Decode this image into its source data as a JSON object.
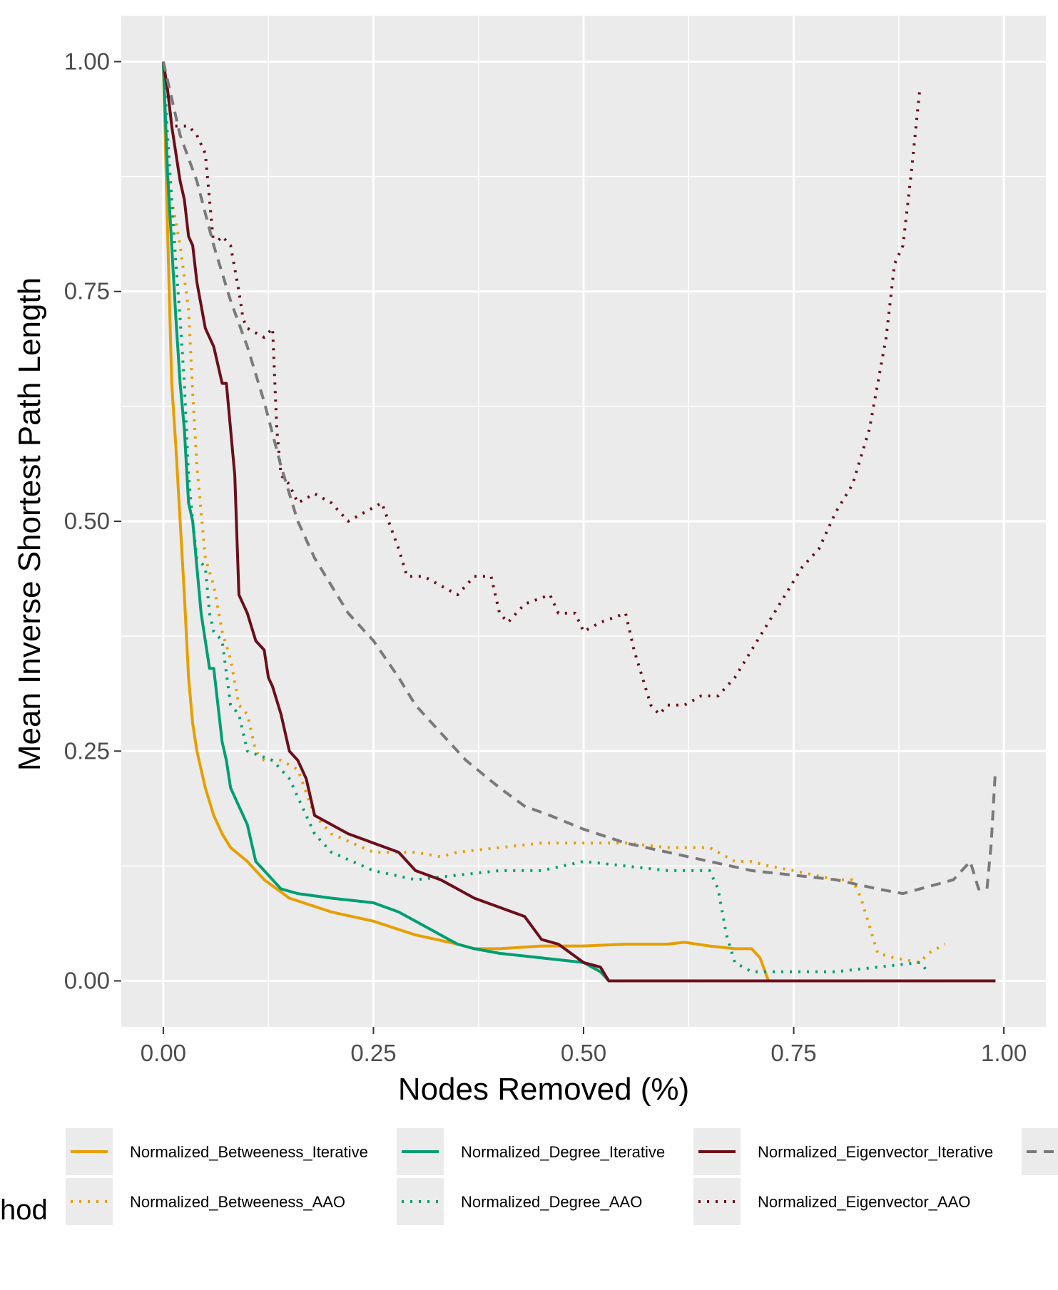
{
  "chart_data": {
    "type": "line",
    "title": "",
    "xlabel": "Nodes Removed (%)",
    "ylabel": "Mean Inverse Shortest Path Length",
    "xlim": [
      -0.05,
      1.05
    ],
    "ylim": [
      -0.05,
      1.05
    ],
    "xticks": [
      0,
      0.25,
      0.5,
      0.75,
      1.0
    ],
    "xtick_labels": [
      "0.00",
      "0.25",
      "0.50",
      "0.75",
      "1.00"
    ],
    "yticks": [
      0,
      0.25,
      0.5,
      0.75,
      1.0
    ],
    "ytick_labels": [
      "0.00",
      "0.25",
      "0.50",
      "0.75",
      "1.00"
    ],
    "grid": true,
    "legend": {
      "position": "bottom",
      "title": "hod"
    },
    "series": [
      {
        "name": "Normalized_Betweeness_Iterative",
        "color": "#E69F00",
        "dash": "solid",
        "x": [
          0,
          0.005,
          0.01,
          0.015,
          0.02,
          0.025,
          0.03,
          0.035,
          0.04,
          0.05,
          0.06,
          0.07,
          0.08,
          0.1,
          0.12,
          0.15,
          0.2,
          0.25,
          0.3,
          0.35,
          0.37,
          0.4,
          0.45,
          0.5,
          0.55,
          0.6,
          0.62,
          0.65,
          0.68,
          0.7,
          0.71,
          0.72,
          0.75,
          0.85,
          0.99
        ],
        "y": [
          1.0,
          0.82,
          0.65,
          0.58,
          0.5,
          0.42,
          0.33,
          0.28,
          0.25,
          0.21,
          0.18,
          0.16,
          0.145,
          0.13,
          0.11,
          0.09,
          0.075,
          0.065,
          0.05,
          0.04,
          0.035,
          0.035,
          0.038,
          0.038,
          0.04,
          0.04,
          0.042,
          0.038,
          0.035,
          0.035,
          0.025,
          0.0,
          0.0,
          0.0,
          0.0
        ]
      },
      {
        "name": "Normalized_Betweeness_AAO",
        "color": "#E69F00",
        "dash": "dotted",
        "x": [
          0,
          0.005,
          0.01,
          0.02,
          0.03,
          0.035,
          0.04,
          0.05,
          0.06,
          0.07,
          0.08,
          0.09,
          0.1,
          0.11,
          0.12,
          0.14,
          0.16,
          0.18,
          0.2,
          0.25,
          0.3,
          0.33,
          0.35,
          0.4,
          0.45,
          0.5,
          0.55,
          0.6,
          0.65,
          0.68,
          0.7,
          0.72,
          0.75,
          0.8,
          0.82,
          0.83,
          0.85,
          0.87,
          0.9,
          0.91,
          0.93
        ],
        "y": [
          1.0,
          0.9,
          0.85,
          0.8,
          0.73,
          0.64,
          0.56,
          0.46,
          0.43,
          0.38,
          0.35,
          0.3,
          0.29,
          0.25,
          0.24,
          0.24,
          0.23,
          0.18,
          0.16,
          0.14,
          0.14,
          0.135,
          0.14,
          0.145,
          0.15,
          0.15,
          0.15,
          0.145,
          0.145,
          0.13,
          0.13,
          0.125,
          0.12,
          0.11,
          0.11,
          0.09,
          0.03,
          0.025,
          0.02,
          0.03,
          0.04
        ]
      },
      {
        "name": "Normalized_Degree_Iterative",
        "color": "#009E73",
        "dash": "solid",
        "x": [
          0,
          0.005,
          0.01,
          0.015,
          0.02,
          0.025,
          0.03,
          0.035,
          0.04,
          0.045,
          0.05,
          0.055,
          0.06,
          0.065,
          0.07,
          0.075,
          0.08,
          0.09,
          0.1,
          0.11,
          0.12,
          0.14,
          0.16,
          0.2,
          0.25,
          0.28,
          0.3,
          0.33,
          0.35,
          0.37,
          0.4,
          0.45,
          0.5,
          0.52,
          0.53,
          0.55,
          0.7,
          0.99
        ],
        "y": [
          1.0,
          0.88,
          0.8,
          0.72,
          0.65,
          0.6,
          0.52,
          0.5,
          0.45,
          0.4,
          0.37,
          0.34,
          0.34,
          0.3,
          0.26,
          0.24,
          0.21,
          0.19,
          0.17,
          0.13,
          0.12,
          0.1,
          0.095,
          0.09,
          0.085,
          0.075,
          0.065,
          0.05,
          0.04,
          0.035,
          0.03,
          0.025,
          0.02,
          0.01,
          0.0,
          0.0,
          0.0,
          0.0
        ]
      },
      {
        "name": "Normalized_Degree_AAO",
        "color": "#009E73",
        "dash": "dotted",
        "x": [
          0,
          0.005,
          0.01,
          0.015,
          0.02,
          0.025,
          0.03,
          0.035,
          0.04,
          0.05,
          0.055,
          0.06,
          0.07,
          0.08,
          0.09,
          0.1,
          0.13,
          0.15,
          0.17,
          0.18,
          0.2,
          0.25,
          0.3,
          0.35,
          0.4,
          0.45,
          0.5,
          0.55,
          0.6,
          0.65,
          0.66,
          0.67,
          0.68,
          0.7,
          0.75,
          0.8,
          0.85,
          0.9,
          0.91
        ],
        "y": [
          1.0,
          0.92,
          0.85,
          0.78,
          0.72,
          0.65,
          0.55,
          0.5,
          0.46,
          0.45,
          0.4,
          0.38,
          0.37,
          0.3,
          0.29,
          0.25,
          0.24,
          0.22,
          0.18,
          0.16,
          0.14,
          0.12,
          0.11,
          0.115,
          0.12,
          0.12,
          0.13,
          0.125,
          0.12,
          0.12,
          0.1,
          0.05,
          0.02,
          0.01,
          0.01,
          0.01,
          0.015,
          0.02,
          0.01
        ]
      },
      {
        "name": "Normalized_Eigenvector_Iterative",
        "color": "#6B0F1A",
        "dash": "solid",
        "x": [
          0,
          0.005,
          0.01,
          0.015,
          0.02,
          0.025,
          0.03,
          0.035,
          0.04,
          0.05,
          0.06,
          0.07,
          0.075,
          0.08,
          0.085,
          0.09,
          0.1,
          0.11,
          0.12,
          0.125,
          0.13,
          0.14,
          0.15,
          0.16,
          0.17,
          0.18,
          0.2,
          0.22,
          0.25,
          0.28,
          0.3,
          0.33,
          0.35,
          0.37,
          0.4,
          0.43,
          0.45,
          0.47,
          0.5,
          0.52,
          0.53,
          0.55,
          0.7,
          0.99
        ],
        "y": [
          1.0,
          0.97,
          0.93,
          0.9,
          0.87,
          0.85,
          0.81,
          0.8,
          0.76,
          0.71,
          0.69,
          0.65,
          0.65,
          0.6,
          0.55,
          0.42,
          0.4,
          0.37,
          0.36,
          0.33,
          0.32,
          0.29,
          0.25,
          0.24,
          0.22,
          0.18,
          0.17,
          0.16,
          0.15,
          0.14,
          0.12,
          0.11,
          0.1,
          0.09,
          0.08,
          0.07,
          0.045,
          0.04,
          0.02,
          0.015,
          0.0,
          0.0,
          0.0,
          0.0
        ]
      },
      {
        "name": "Normalized_Eigenvector_AAO",
        "color": "#6B0F1A",
        "dash": "dotted",
        "x": [
          0,
          0.005,
          0.01,
          0.02,
          0.03,
          0.04,
          0.05,
          0.055,
          0.06,
          0.07,
          0.08,
          0.09,
          0.095,
          0.1,
          0.12,
          0.13,
          0.135,
          0.14,
          0.15,
          0.16,
          0.18,
          0.2,
          0.22,
          0.24,
          0.26,
          0.28,
          0.29,
          0.31,
          0.33,
          0.35,
          0.37,
          0.39,
          0.4,
          0.41,
          0.43,
          0.46,
          0.47,
          0.49,
          0.5,
          0.52,
          0.55,
          0.56,
          0.57,
          0.58,
          0.59,
          0.6,
          0.62,
          0.64,
          0.66,
          0.68,
          0.7,
          0.72,
          0.74,
          0.76,
          0.78,
          0.8,
          0.82,
          0.84,
          0.86,
          0.87,
          0.88,
          0.89,
          0.9
        ],
        "y": [
          1.0,
          0.97,
          0.93,
          0.93,
          0.93,
          0.92,
          0.9,
          0.85,
          0.8,
          0.81,
          0.8,
          0.75,
          0.72,
          0.71,
          0.7,
          0.71,
          0.6,
          0.55,
          0.54,
          0.52,
          0.53,
          0.52,
          0.5,
          0.51,
          0.52,
          0.47,
          0.44,
          0.44,
          0.43,
          0.42,
          0.44,
          0.44,
          0.4,
          0.39,
          0.41,
          0.42,
          0.4,
          0.4,
          0.38,
          0.39,
          0.4,
          0.36,
          0.33,
          0.3,
          0.29,
          0.3,
          0.3,
          0.31,
          0.31,
          0.33,
          0.36,
          0.39,
          0.42,
          0.45,
          0.47,
          0.51,
          0.54,
          0.6,
          0.7,
          0.78,
          0.8,
          0.88,
          0.97
        ]
      },
      {
        "name": "",
        "color": "#7A7A7A",
        "dash": "dashed",
        "x": [
          0,
          0.01,
          0.02,
          0.04,
          0.06,
          0.08,
          0.1,
          0.12,
          0.14,
          0.16,
          0.18,
          0.2,
          0.22,
          0.25,
          0.28,
          0.3,
          0.33,
          0.36,
          0.4,
          0.43,
          0.46,
          0.5,
          0.55,
          0.6,
          0.65,
          0.7,
          0.75,
          0.8,
          0.85,
          0.88,
          0.9,
          0.92,
          0.94,
          0.95,
          0.96,
          0.97,
          0.975,
          0.98,
          0.985,
          0.99
        ],
        "y": [
          1.0,
          0.96,
          0.92,
          0.87,
          0.8,
          0.74,
          0.69,
          0.63,
          0.56,
          0.5,
          0.46,
          0.43,
          0.4,
          0.37,
          0.33,
          0.3,
          0.27,
          0.24,
          0.21,
          0.19,
          0.18,
          0.165,
          0.15,
          0.14,
          0.13,
          0.12,
          0.115,
          0.11,
          0.1,
          0.095,
          0.1,
          0.105,
          0.11,
          0.12,
          0.13,
          0.1,
          0.1,
          0.1,
          0.15,
          0.23
        ]
      }
    ]
  }
}
